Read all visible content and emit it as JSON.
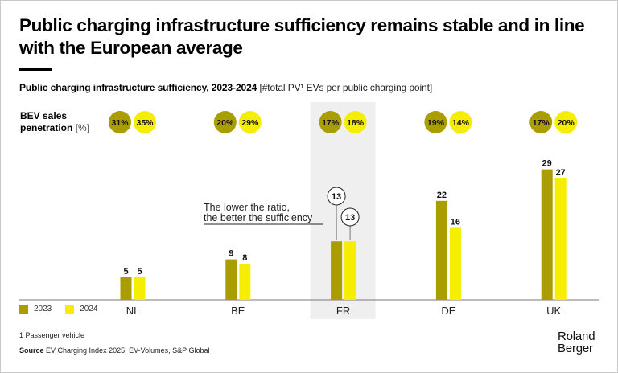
{
  "header": {
    "title": "Public charging infrastructure sufficiency remains stable and in line with the European average",
    "subtitle_bold": "Public charging infrastructure sufficiency, 2023-2024",
    "subtitle_unit": "[#total PV¹ EVs per public charging point]"
  },
  "bev_label": {
    "line1": "BEV sales",
    "line2": "penetration",
    "unit": "[%]"
  },
  "colors": {
    "series_2023": "#aa9d00",
    "series_2024": "#f5ee00",
    "highlight_band": "#efefef",
    "axis": "#777777"
  },
  "chart_data": {
    "type": "bar",
    "title": "Public charging infrastructure sufficiency, 2023-2024",
    "ylabel": "#total PV EVs per public charging point",
    "xlabel": "",
    "categories": [
      "NL",
      "BE",
      "FR",
      "DE",
      "UK"
    ],
    "series": [
      {
        "name": "2023",
        "values": [
          5,
          9,
          13,
          22,
          29
        ]
      },
      {
        "name": "2024",
        "values": [
          5,
          8,
          13,
          16,
          27
        ]
      }
    ],
    "bev_sales_penetration_pct": [
      {
        "name": "2023",
        "values": [
          31,
          20,
          17,
          19,
          17
        ]
      },
      {
        "name": "2024",
        "values": [
          35,
          29,
          18,
          14,
          20
        ]
      }
    ],
    "highlighted_category": "FR",
    "annotation": [
      "The lower the ratio,",
      "the better the sufficiency"
    ],
    "ylim": [
      0,
      30
    ],
    "grid": false,
    "legend_position": "bottom-left"
  },
  "legend": [
    {
      "label": "2023"
    },
    {
      "label": "2024"
    }
  ],
  "footer": {
    "footnote": "1 Passenger vehicle",
    "source_label": "Source",
    "source_text": " EV Charging Index 2025, EV-Volumes, S&P Global",
    "logo_line1": "Roland",
    "logo_line2": "Berger"
  }
}
